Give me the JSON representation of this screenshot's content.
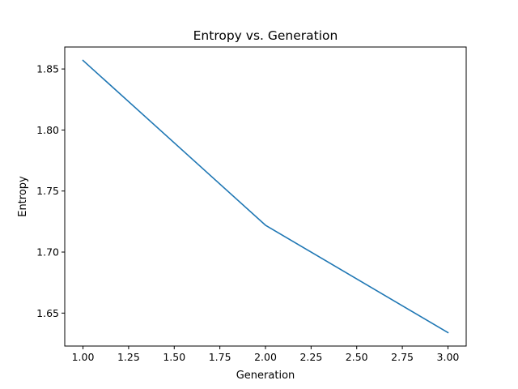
{
  "chart_data": {
    "type": "line",
    "title": "Entropy vs. Generation",
    "xlabel": "Generation",
    "ylabel": "Entropy",
    "x": [
      1.0,
      2.0,
      3.0
    ],
    "series": [
      {
        "values": [
          1.857,
          1.722,
          1.634
        ],
        "color": "#1f77b4"
      }
    ],
    "xlim": [
      0.9,
      3.1
    ],
    "ylim": [
      1.623,
      1.868
    ],
    "xticks": [
      1.0,
      1.25,
      1.5,
      1.75,
      2.0,
      2.25,
      2.5,
      2.75,
      3.0
    ],
    "xtick_labels": [
      "1.00",
      "1.25",
      "1.50",
      "1.75",
      "2.00",
      "2.25",
      "2.50",
      "2.75",
      "3.00"
    ],
    "yticks": [
      1.65,
      1.7,
      1.75,
      1.8,
      1.85
    ],
    "ytick_labels": [
      "1.65",
      "1.70",
      "1.75",
      "1.80",
      "1.85"
    ],
    "grid": false,
    "legend": "none"
  }
}
